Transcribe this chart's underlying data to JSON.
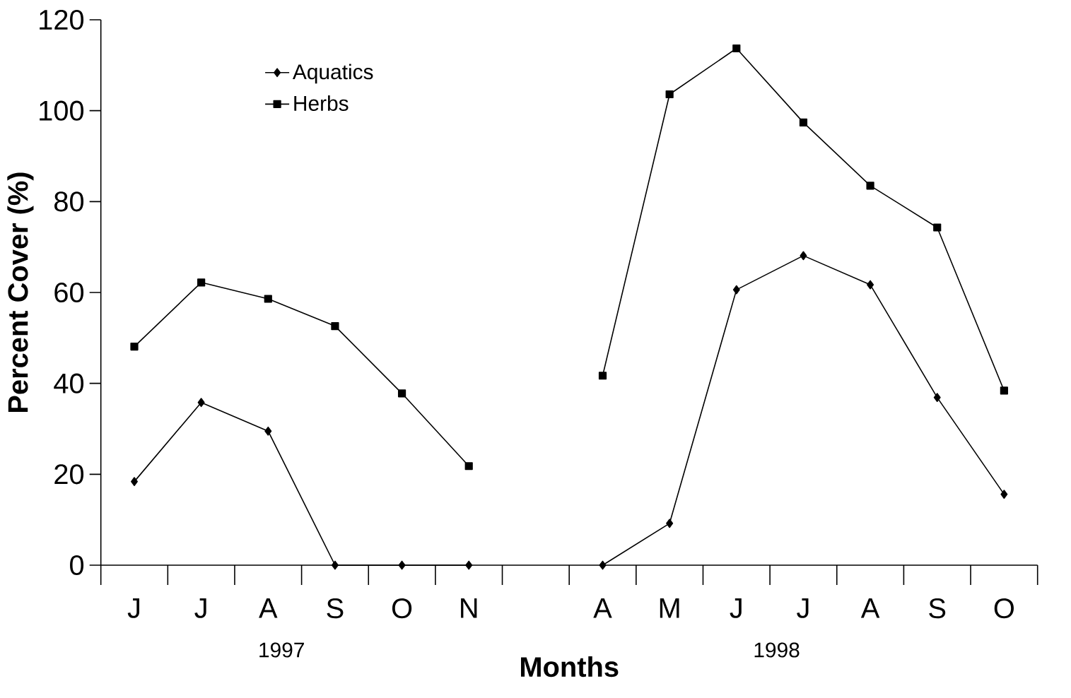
{
  "chart_data": {
    "type": "line",
    "ylabel": "Percent Cover (%)",
    "xlabel": "Months",
    "categories": [
      "J",
      "J",
      "A",
      "S",
      "O",
      "N",
      null,
      "A",
      "M",
      "J",
      "J",
      "A",
      "S",
      "O"
    ],
    "series": [
      {
        "name": "Aquatics",
        "color": "#000000",
        "marker": "diamond",
        "values": [
          18.4,
          35.8,
          29.5,
          0,
          0,
          0,
          null,
          0,
          9.2,
          60.6,
          68.1,
          61.7,
          36.9,
          15.6
        ]
      },
      {
        "name": "Herbs",
        "color": "#000000",
        "marker": "square",
        "values": [
          48.1,
          62.2,
          58.6,
          52.6,
          37.8,
          21.8,
          null,
          41.7,
          103.6,
          113.7,
          97.4,
          83.5,
          74.3,
          38.4
        ]
      }
    ],
    "ylim": [
      0,
      120
    ],
    "yticks": [
      0,
      20,
      40,
      60,
      80,
      100,
      120
    ],
    "legend": "top left",
    "annotations": [
      "1997",
      "1998"
    ]
  }
}
